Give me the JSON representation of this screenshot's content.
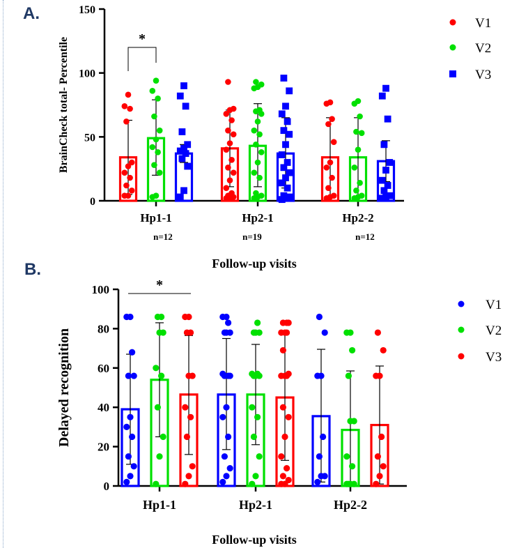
{
  "chart_data": [
    {
      "panel": "A.",
      "type": "bar",
      "categories": [
        "Hp1-1",
        "Hp2-1",
        "Hp2-2"
      ],
      "n_labels": [
        "n=12",
        "n=19",
        "n=12"
      ],
      "xlabel": "Follow-up visits",
      "ylabel": "BrainCheck total- Percentile",
      "ylim": [
        0,
        150
      ],
      "yticks": [
        "0",
        "50",
        "100",
        "150"
      ],
      "legend_position": "top-right",
      "significance": [
        {
          "label": "*",
          "from": "V1",
          "to": "V2",
          "category": "Hp1-1"
        }
      ],
      "series": [
        {
          "name": "V1",
          "color": "#ff0000",
          "marker": "circle",
          "values": [
            34,
            41,
            34
          ],
          "sd_upper": [
            63,
            71,
            65
          ],
          "sd_lower": [
            5,
            11,
            3
          ],
          "points": [
            [
              4,
              4,
              8,
              12,
              18,
              22,
              27,
              30,
              62,
              72,
              74,
              83
            ],
            [
              2,
              2,
              3,
              4,
              6,
              10,
              16,
              22,
              26,
              32,
              40,
              45,
              52,
              55,
              63,
              68,
              71,
              72,
              93
            ],
            [
              2,
              3,
              4,
              10,
              18,
              26,
              30,
              46,
              60,
              64,
              76,
              77
            ]
          ]
        },
        {
          "name": "V2",
          "color": "#00e000",
          "marker": "circle",
          "values": [
            49,
            43,
            34
          ],
          "sd_upper": [
            79,
            76,
            65
          ],
          "sd_lower": [
            20,
            11,
            3
          ],
          "points": [
            [
              3,
              4,
              22,
              28,
              38,
              42,
              48,
              55,
              66,
              80,
              86,
              94
            ],
            [
              2,
              3,
              4,
              6,
              18,
              22,
              30,
              38,
              44,
              52,
              55,
              62,
              68,
              70,
              71,
              88,
              89,
              91,
              93
            ],
            [
              2,
              3,
              4,
              8,
              14,
              26,
              40,
              53,
              54,
              66,
              76,
              78
            ]
          ]
        },
        {
          "name": "V3",
          "color": "#0000ff",
          "marker": "square",
          "values": [
            37,
            37,
            31
          ],
          "sd_upper": [
            44,
            65,
            47
          ],
          "sd_lower": [
            30,
            10,
            15
          ],
          "points": [
            [
              3,
              8,
              27,
              33,
              37,
              39,
              41,
              44,
              54,
              74,
              82,
              90
            ],
            [
              1,
              2,
              3,
              4,
              10,
              14,
              18,
              22,
              26,
              30,
              36,
              44,
              52,
              55,
              62,
              68,
              74,
              86,
              96
            ],
            [
              2,
              3,
              4,
              8,
              12,
              16,
              24,
              30,
              44,
              64,
              82,
              88
            ]
          ]
        }
      ]
    },
    {
      "panel": "B.",
      "type": "bar",
      "categories": [
        "Hp1-1",
        "Hp2-1",
        "Hp2-2"
      ],
      "xlabel": "Follow-up visits",
      "ylabel": "Delayed recognition",
      "ylim": [
        0,
        100
      ],
      "yticks": [
        "0",
        "20",
        "40",
        "60",
        "80",
        "100"
      ],
      "legend_position": "top-right",
      "significance": [
        {
          "label": "*",
          "from": "V1",
          "to": "V3",
          "category": "Hp1-1"
        }
      ],
      "series": [
        {
          "name": "V1",
          "color": "#0000ff",
          "marker": "circle",
          "values": [
            39,
            46.5,
            35.5
          ],
          "sd_upper": [
            67,
            75,
            69.5
          ],
          "sd_lower": [
            11,
            18.5,
            2
          ],
          "points": [
            [
              2,
              5,
              10,
              15,
              25,
              30,
              35,
              56,
              56,
              68,
              86,
              86
            ],
            [
              2,
              5,
              9,
              15,
              25,
              35,
              40,
              56,
              56,
              56,
              57,
              78,
              78,
              78,
              83,
              86,
              86
            ],
            [
              2,
              5,
              5,
              15,
              25,
              56,
              56,
              78,
              86
            ]
          ]
        },
        {
          "name": "V2",
          "color": "#00e000",
          "marker": "circle",
          "values": [
            54,
            46.5,
            28.5
          ],
          "sd_upper": [
            83,
            72,
            58.5
          ],
          "sd_lower": [
            25,
            21,
            1
          ],
          "points": [
            [
              1,
              15,
              25,
              40,
              56,
              60,
              78,
              78,
              86,
              86
            ],
            [
              1,
              5,
              15,
              25,
              35,
              40,
              56,
              56,
              56,
              57,
              57,
              78,
              78,
              78,
              83
            ],
            [
              1,
              1,
              1,
              1,
              10,
              15,
              33,
              33,
              56,
              69,
              78,
              78
            ]
          ]
        },
        {
          "name": "V3",
          "color": "#ff0000",
          "marker": "circle",
          "values": [
            46.5,
            45,
            31
          ],
          "sd_upper": [
            76.5,
            77,
            61
          ],
          "sd_lower": [
            16,
            13,
            1
          ],
          "points": [
            [
              1,
              5,
              10,
              25,
              35,
              40,
              56,
              56,
              78,
              78,
              86,
              86
            ],
            [
              1,
              1,
              3,
              5,
              9,
              15,
              25,
              35,
              40,
              56,
              56,
              56,
              57,
              69,
              78,
              78,
              78,
              83,
              83,
              83
            ],
            [
              1,
              5,
              10,
              15,
              25,
              56,
              56,
              69,
              78
            ]
          ]
        }
      ]
    }
  ]
}
